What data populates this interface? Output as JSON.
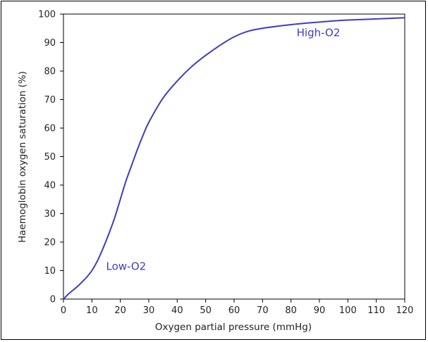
{
  "chart_data": {
    "type": "line",
    "xlabel": "Oxygen partial pressure (mmHg)",
    "ylabel": "Haemoglobin oxygen saturation (%)",
    "xlim": [
      0,
      120
    ],
    "ylim": [
      0,
      100
    ],
    "xticks": [
      "0",
      "10",
      "20",
      "30",
      "40",
      "50",
      "60",
      "70",
      "80",
      "90",
      "100",
      "110",
      "120"
    ],
    "yticks": [
      "0",
      "10",
      "20",
      "30",
      "40",
      "50",
      "60",
      "70",
      "80",
      "90",
      "100"
    ],
    "grid": false,
    "series": [
      {
        "color": "#3d3dbf",
        "x": [
          0,
          2,
          5,
          8,
          10,
          12,
          14,
          16,
          18,
          20,
          22,
          24,
          26,
          28,
          30,
          35,
          40,
          45,
          50,
          55,
          60,
          65,
          70,
          75,
          80,
          85,
          90,
          95,
          100,
          105,
          110,
          115,
          120
        ],
        "y": [
          0,
          2,
          4.5,
          7.5,
          10,
          13.5,
          18,
          23,
          28.5,
          35,
          41.5,
          47,
          52.5,
          57.5,
          62,
          70.5,
          76.5,
          81.5,
          85.5,
          89,
          92,
          94,
          95,
          95.7,
          96.3,
          96.8,
          97.2,
          97.6,
          97.9,
          98.1,
          98.3,
          98.5,
          98.7
        ]
      }
    ],
    "annotations": [
      {
        "text": "Low-O2",
        "x": 15,
        "y": 10
      },
      {
        "text": "High-O2",
        "x": 82,
        "y": 92
      }
    ]
  }
}
